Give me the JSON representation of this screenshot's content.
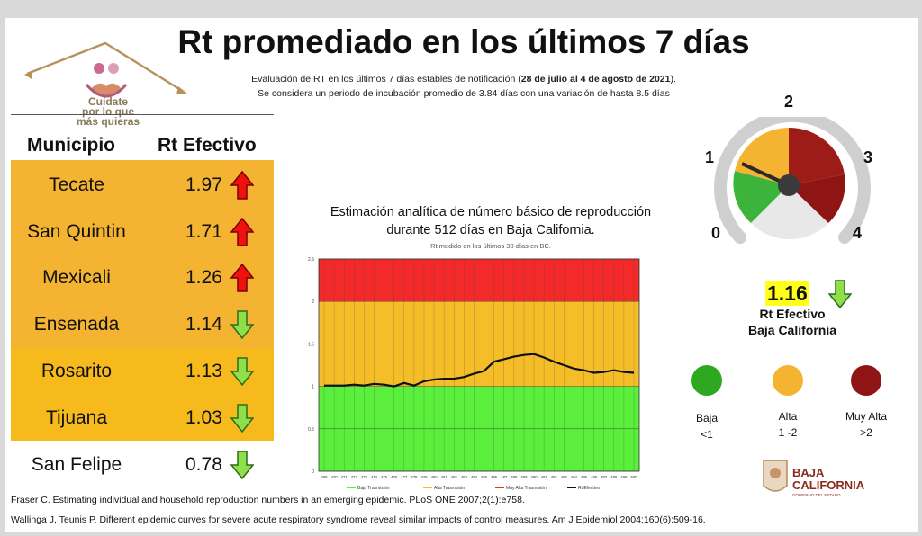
{
  "logo": {
    "line1": "Cuídate",
    "line2": "por lo que",
    "line3": "más quieras"
  },
  "title": "Rt promediado en los últimos 7 días",
  "subtitle": {
    "line1_pre": "Evaluación de RT en los últimos 7 días estables de notificación (",
    "line1_bold": "28 de julio al 4 de agosto de 2021",
    "line1_post": ").",
    "line2": "Se considera un periodo de incubación promedio de 3.84 días con una variación de hasta 8.5 días"
  },
  "table": {
    "headers": [
      "Municipio",
      "Rt Efectivo"
    ],
    "rows": [
      {
        "name": "Tecate",
        "value": "1.97",
        "trend": "up"
      },
      {
        "name": "San Quintin",
        "value": "1.71",
        "trend": "up"
      },
      {
        "name": "Mexicali",
        "value": "1.26",
        "trend": "up"
      },
      {
        "name": "Ensenada",
        "value": "1.14",
        "trend": "down"
      },
      {
        "name": "Rosarito",
        "value": "1.13",
        "trend": "down"
      },
      {
        "name": "Tijuana",
        "value": "1.03",
        "trend": "down"
      },
      {
        "name": "San Felipe",
        "value": "0.78",
        "trend": "down"
      }
    ],
    "colors": {
      "up": "#f01010",
      "down": "#8ee04a"
    }
  },
  "gauge": {
    "labels": [
      "0",
      "1",
      "2",
      "3",
      "4"
    ]
  },
  "summary": {
    "rt_value": "1.16",
    "label1": "Rt Efectivo",
    "label2": "Baja California"
  },
  "legend": [
    {
      "name": "Baja",
      "range": "<1",
      "color": "#2da81f"
    },
    {
      "name": "Alta",
      "range": "1 -2",
      "color": "#f4b431"
    },
    {
      "name": "Muy Alta",
      "range": ">2",
      "color": "#8e1513"
    }
  ],
  "bc_logo": {
    "line1": "BAJA",
    "line2": "CALIFORNIA",
    "line3": "GOBIERNO DEL ESTADO"
  },
  "references": [
    "Fraser C. Estimating individual and household reproduction numbers in an emerging epidemic. PLoS ONE 2007;2(1):e758.",
    "Wallinga J, Teunis P. Different epidemic curves for severe acute respiratory syndrome reveal similar impacts of control measures. Am J Epidemiol 2004;160(6):509-16."
  ],
  "chart_data": {
    "type": "line",
    "title_line1": "Estimación analítica de número básico de reproducción",
    "title_line2": "durante 512 días en Baja California.",
    "subtitle": "Rt medido en los últimos 30 días en BC.",
    "ylim": [
      0,
      2.5
    ],
    "yticks": [
      "0",
      "0.5",
      "1",
      "1.5",
      "2",
      "2.5"
    ],
    "x": [
      469,
      470,
      471,
      472,
      473,
      474,
      475,
      476,
      477,
      478,
      479,
      480,
      481,
      482,
      483,
      484,
      485,
      486,
      487,
      488,
      489,
      490,
      491,
      492,
      493,
      494,
      495,
      496,
      497,
      498,
      499,
      500
    ],
    "x_labels": [
      "469",
      "470",
      "471",
      "472",
      "473",
      "474",
      "475",
      "476",
      "477",
      "478",
      "479",
      "480",
      "481",
      "482",
      "483",
      "484",
      "485",
      "486",
      "487",
      "488",
      "489",
      "490",
      "491",
      "492",
      "493",
      "494",
      "495",
      "496",
      "497",
      "498",
      "499",
      "500"
    ],
    "bands": [
      {
        "name": "Baja Trasmisión",
        "from": 0,
        "to": 1,
        "color": "#5aef3a"
      },
      {
        "name": "Alta Trasmisión",
        "from": 1,
        "to": 2,
        "color": "#f5be28"
      },
      {
        "name": "Muy Alta Trasmisión",
        "from": 2,
        "to": 2.5,
        "color": "#f42a2a"
      }
    ],
    "series": [
      {
        "name": "Rt Efectivo",
        "color": "#111111",
        "values": [
          1.01,
          1.01,
          1.01,
          1.02,
          1.01,
          1.03,
          1.02,
          1.0,
          1.04,
          1.01,
          1.06,
          1.08,
          1.09,
          1.09,
          1.11,
          1.15,
          1.18,
          1.29,
          1.32,
          1.35,
          1.37,
          1.38,
          1.34,
          1.29,
          1.25,
          1.21,
          1.19,
          1.16,
          1.17,
          1.19,
          1.17,
          1.16
        ]
      }
    ]
  }
}
